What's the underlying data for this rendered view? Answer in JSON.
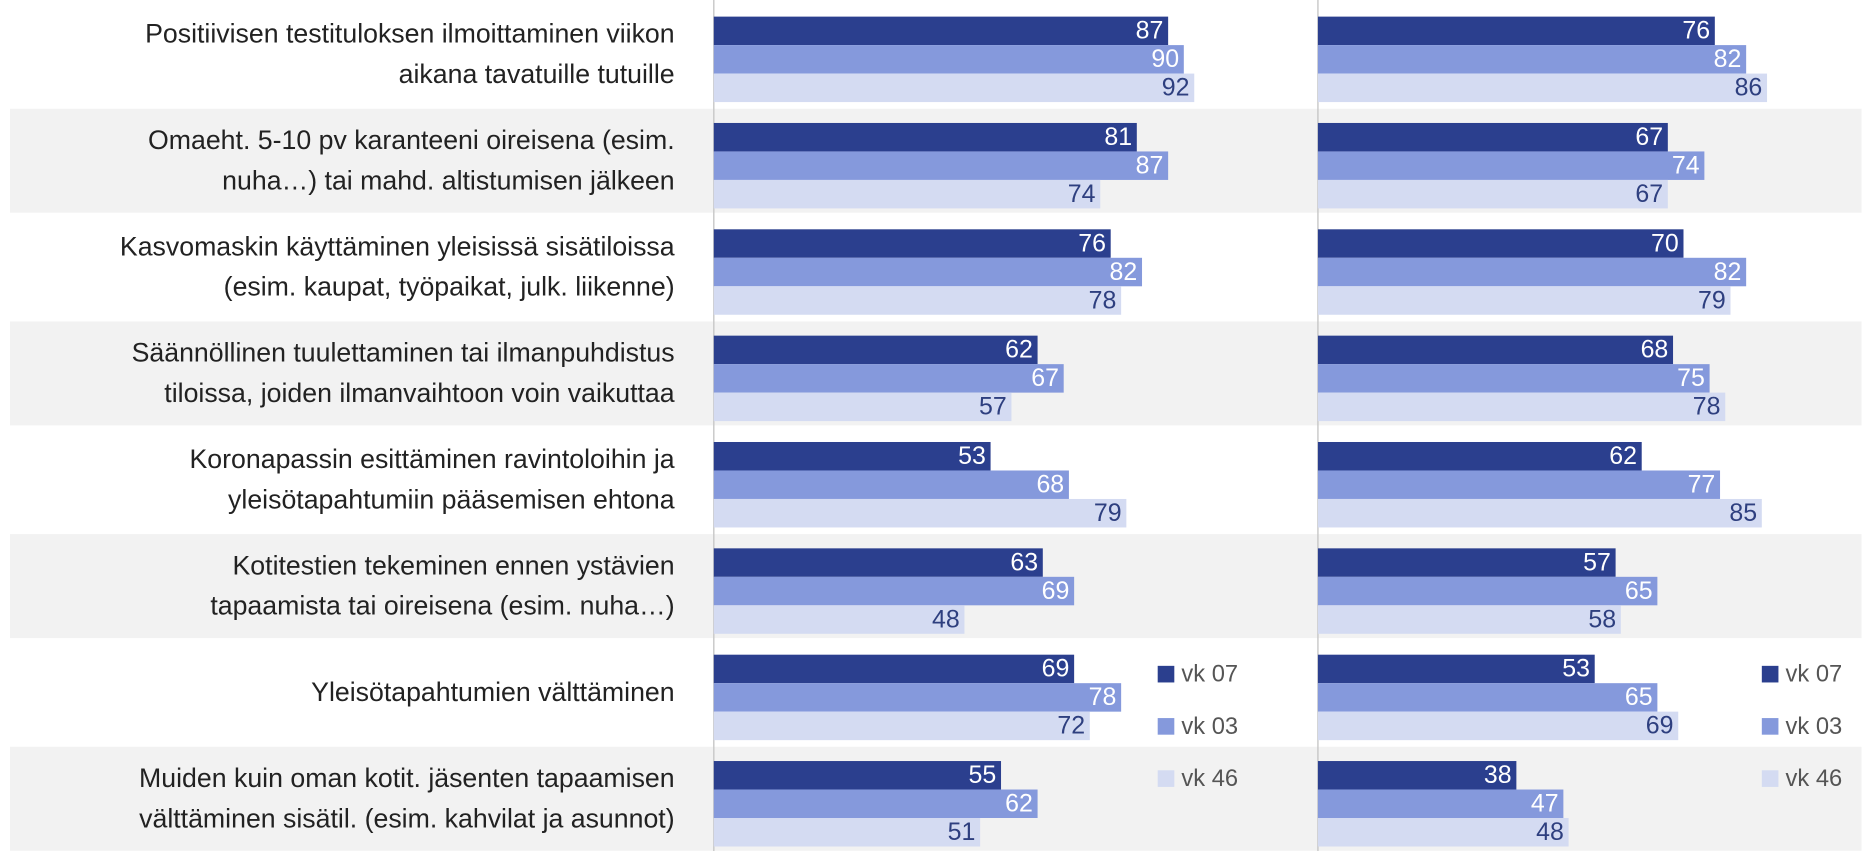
{
  "chart_data": [
    {
      "type": "bar",
      "orientation": "horizontal",
      "xlim": [
        0,
        100
      ],
      "legend": "right",
      "categories": [
        [
          "Positiivisen testituloksen ilmoittaminen viikon",
          "aikana tavatuille tutuille"
        ],
        [
          "Omaeht. 5-10 pv karanteeni oireisena (esim.",
          "nuha…) tai mahd. altistumisen jälkeen"
        ],
        [
          "Kasvomaskin käyttäminen yleisissä sisätiloissa",
          "(esim. kaupat, työpaikat, julk. liikenne)"
        ],
        [
          "Säännöllinen tuulettaminen tai ilmanpuhdistus",
          "tiloissa, joiden ilmanvaihtoon voin vaikuttaa"
        ],
        [
          "Koronapassin esittäminen ravintoloihin ja",
          "yleisötapahtumiin pääsemisen ehtona"
        ],
        [
          "Kotitestien tekeminen ennen ystävien",
          "tapaamista tai oireisena (esim. nuha…)"
        ],
        [
          "Yleisötapahtumien välttäminen"
        ],
        [
          "Muiden kuin oman kotit. jäsenten tapaamisen",
          "välttäminen sisätil. (esim. kahvilat ja asunnot)"
        ]
      ],
      "series": [
        {
          "name": "vk 07",
          "color": "#2b3f8e",
          "values": [
            87,
            81,
            76,
            62,
            53,
            63,
            69,
            55
          ]
        },
        {
          "name": "vk 03",
          "color": "#8599dc",
          "values": [
            90,
            87,
            82,
            67,
            68,
            69,
            78,
            62
          ]
        },
        {
          "name": "vk 46",
          "color": "#d4dbf2",
          "values": [
            92,
            74,
            78,
            57,
            79,
            48,
            72,
            51
          ]
        }
      ]
    },
    {
      "type": "bar",
      "orientation": "horizontal",
      "xlim": [
        0,
        100
      ],
      "legend": "right",
      "series": [
        {
          "name": "vk 07",
          "color": "#2b3f8e",
          "values": [
            76,
            67,
            70,
            68,
            62,
            57,
            53,
            38
          ]
        },
        {
          "name": "vk 03",
          "color": "#8599dc",
          "values": [
            82,
            74,
            82,
            75,
            77,
            65,
            65,
            47
          ]
        },
        {
          "name": "vk 46",
          "color": "#d4dbf2",
          "values": [
            86,
            67,
            79,
            78,
            85,
            58,
            69,
            48
          ]
        }
      ]
    }
  ]
}
